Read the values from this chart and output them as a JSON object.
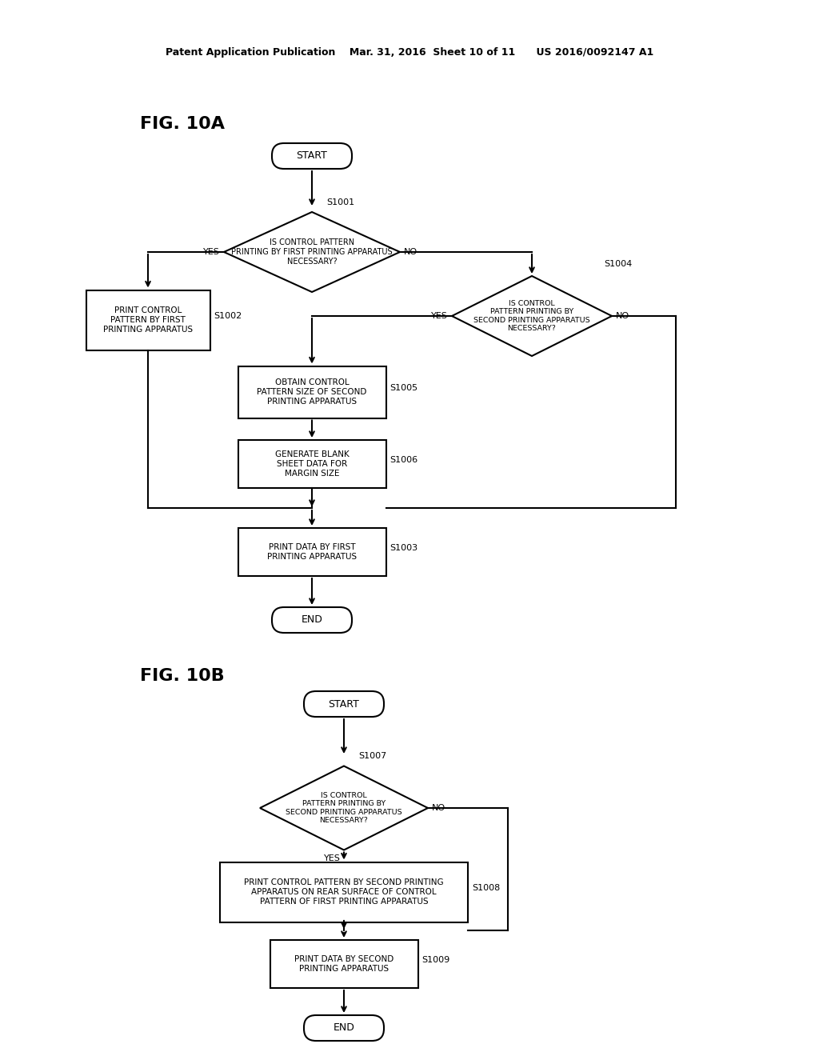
{
  "bg_color": "#ffffff",
  "header_text": "Patent Application Publication    Mar. 31, 2016  Sheet 10 of 11      US 2016/0092147 A1",
  "fig10a_label": "FIG. 10A",
  "fig10b_label": "FIG. 10B",
  "font_family": "Arial Narrow"
}
